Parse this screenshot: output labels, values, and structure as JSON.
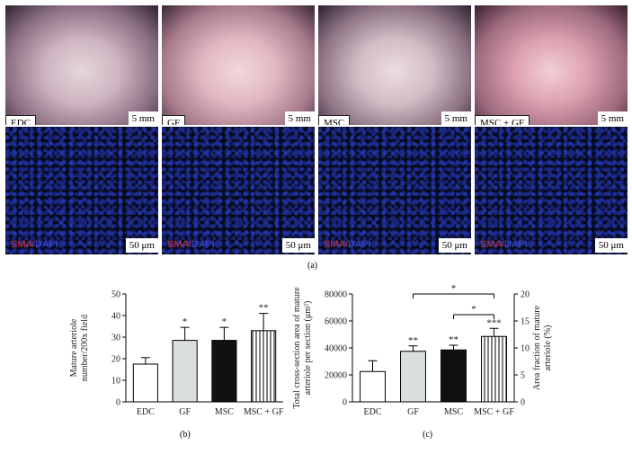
{
  "figure": {
    "panels": [
      {
        "label": "EDC",
        "photo_scale": "5 mm",
        "stain_sma": "SMA",
        "stain_dapi": "DAPI",
        "fluor_scale": "50 μm"
      },
      {
        "label": "GF",
        "photo_scale": "5 mm",
        "stain_sma": "SMA",
        "stain_dapi": "DAPI",
        "fluor_scale": "50 μm"
      },
      {
        "label": "MSC",
        "photo_scale": "5 mm",
        "stain_sma": "SMA",
        "stain_dapi": "DAPI",
        "fluor_scale": "50 μm"
      },
      {
        "label": "MSC + GF",
        "photo_scale": "5 mm",
        "stain_sma": "SMA",
        "stain_dapi": "DAPI",
        "fluor_scale": "50 μm"
      }
    ],
    "caption_a": "(a)",
    "caption_b": "(b)",
    "caption_c": "(c)",
    "colors": {
      "white_bar": "#ffffff",
      "gray_bar": "#d9dfdc",
      "black_bar": "#111111",
      "bar_edge": "#000000"
    }
  },
  "chart_data": [
    {
      "type": "bar",
      "categories": [
        "EDC",
        "GF",
        "MSC",
        "MSC + GF"
      ],
      "values": [
        17.5,
        28.5,
        28.5,
        33
      ],
      "errors": [
        3,
        6,
        6,
        8
      ],
      "significance": [
        "",
        "*",
        "*",
        "**"
      ],
      "fills": [
        "white",
        "gray",
        "black",
        "vertical-stripes"
      ],
      "ylabel_line1": "Mature arteriole",
      "ylabel_line2": "number/200x field",
      "ylim": [
        0,
        50
      ],
      "yticks": [
        "0",
        "10",
        "20",
        "30",
        "40",
        "50"
      ]
    },
    {
      "type": "bar",
      "categories": [
        "EDC",
        "GF",
        "MSC",
        "MSC + GF"
      ],
      "values": [
        22500,
        37500,
        38500,
        48500
      ],
      "errors": [
        8000,
        4000,
        3500,
        6000
      ],
      "significance": [
        "",
        "**",
        "**",
        "***"
      ],
      "fills": [
        "white",
        "gray",
        "black",
        "vertical-stripes"
      ],
      "ylabel_line1": "Total cross-section area of mature",
      "ylabel_line2": "arteriole per section (μm²)",
      "ylim": [
        0,
        80000
      ],
      "yticks": [
        "0",
        "20000",
        "40000",
        "60000",
        "80000"
      ],
      "y2label_line1": "Area fraction of mature",
      "y2label_line2": "arteriole (%)",
      "y2lim": [
        0,
        20
      ],
      "y2ticks": [
        "0",
        "5",
        "10",
        "15",
        "20"
      ],
      "brackets": [
        {
          "from": "GF",
          "to": "MSC + GF",
          "label": "*"
        },
        {
          "from": "MSC",
          "to": "MSC + GF",
          "label": "*"
        }
      ]
    }
  ]
}
